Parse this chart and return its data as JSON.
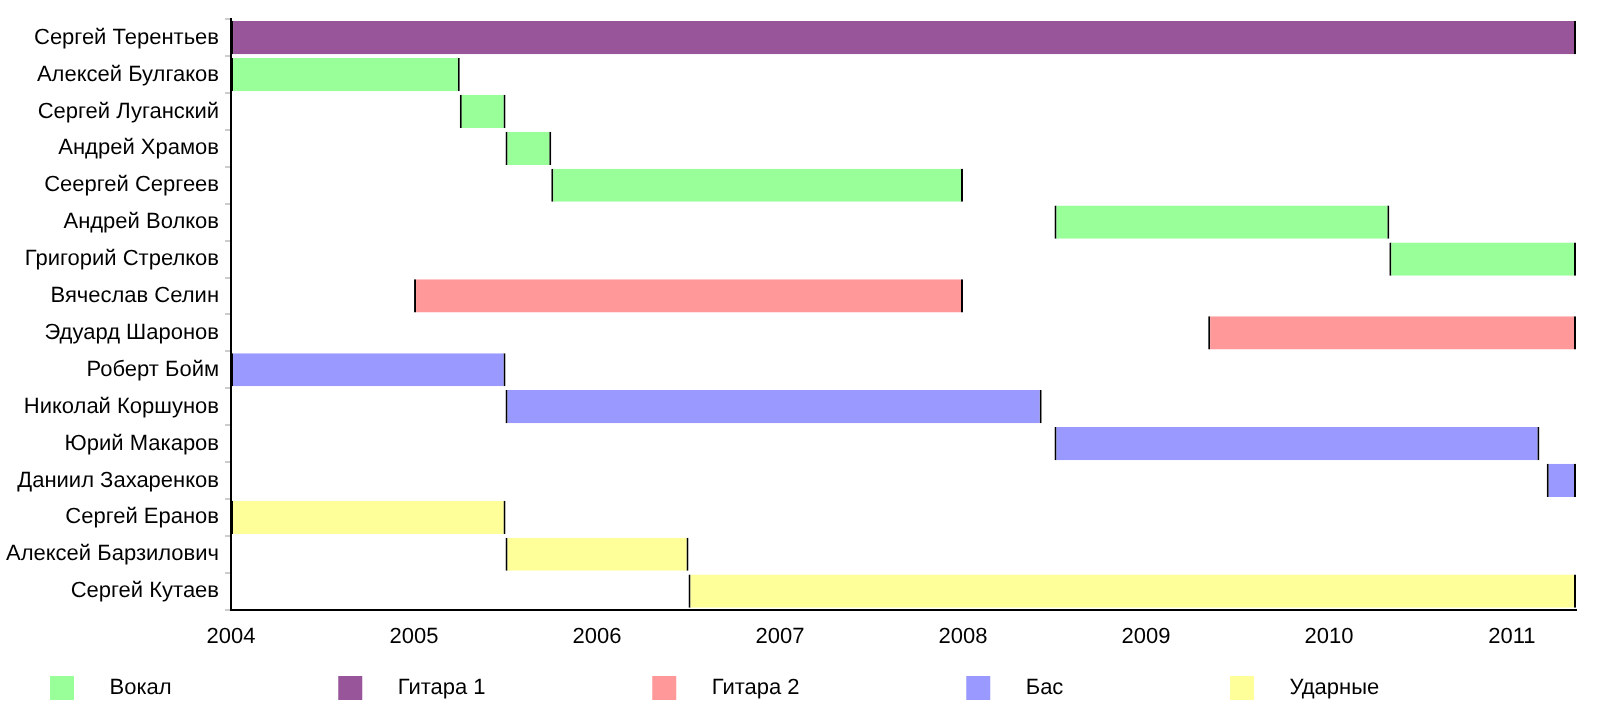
{
  "chart_data": {
    "type": "bar",
    "orientation": "horizontal",
    "categories": [
      "Сергей Терентьев",
      "Алексей Булгаков",
      "Сергей Луганский",
      "Андрей Храмов",
      "Сеергей Сергеев",
      "Андрей Волков",
      "Григорий Стрелков",
      "Вячеслав Селин",
      "Эдуард Шаронов",
      "Роберт Бойм",
      "Николай Коршунов",
      "Юрий Макаров",
      "Даниил Захаренков",
      "Сергей Еранов",
      "Алексей Барзилович",
      "Сергей Кутаев"
    ],
    "series": [
      {
        "name": "Вокал",
        "color": "#99ff99",
        "values": [
          null,
          1.25,
          0.25,
          0.25,
          2.25,
          1.83,
          1.02,
          null,
          null,
          null,
          null,
          null,
          null,
          null,
          null,
          null
        ],
        "base": [
          null,
          2004,
          2005.25,
          2005.5,
          2005.75,
          2008.5,
          2010.33,
          null,
          null,
          null,
          null,
          null,
          null,
          null,
          null,
          null
        ]
      },
      {
        "name": "Гитара 1",
        "color": "#995599",
        "values": [
          7.35,
          null,
          null,
          null,
          null,
          null,
          null,
          null,
          null,
          null,
          null,
          null,
          null,
          null,
          null,
          null
        ],
        "base": [
          2004,
          null,
          null,
          null,
          null,
          null,
          null,
          null,
          null,
          null,
          null,
          null,
          null,
          null,
          null,
          null
        ]
      },
      {
        "name": "Гитара 2",
        "color": "#ff9999",
        "values": [
          null,
          null,
          null,
          null,
          null,
          null,
          null,
          3,
          2.01,
          null,
          null,
          null,
          null,
          null,
          null,
          null
        ],
        "base": [
          null,
          null,
          null,
          null,
          null,
          null,
          null,
          2005,
          2009.34,
          null,
          null,
          null,
          null,
          null,
          null,
          null
        ]
      },
      {
        "name": "Бас",
        "color": "#9999ff",
        "values": [
          null,
          null,
          null,
          null,
          null,
          null,
          null,
          null,
          null,
          1.5,
          2.93,
          2.65,
          0.16,
          null,
          null,
          null
        ],
        "base": [
          null,
          null,
          null,
          null,
          null,
          null,
          null,
          null,
          null,
          2004,
          2005.5,
          2008.5,
          2011.19,
          null,
          null,
          null
        ]
      },
      {
        "name": "Ударные",
        "color": "#ffff99",
        "values": [
          null,
          null,
          null,
          null,
          null,
          null,
          null,
          null,
          null,
          null,
          null,
          null,
          null,
          1.5,
          1,
          4.85
        ],
        "base": [
          null,
          null,
          null,
          null,
          null,
          null,
          null,
          null,
          null,
          null,
          null,
          null,
          null,
          2004,
          2005.5,
          2006.5
        ]
      }
    ],
    "xlim": [
      2004,
      2011.35
    ],
    "xticks": [
      2004,
      2005,
      2006,
      2007,
      2008,
      2009,
      2010,
      2011
    ],
    "grid": false,
    "legend": "bottom"
  }
}
